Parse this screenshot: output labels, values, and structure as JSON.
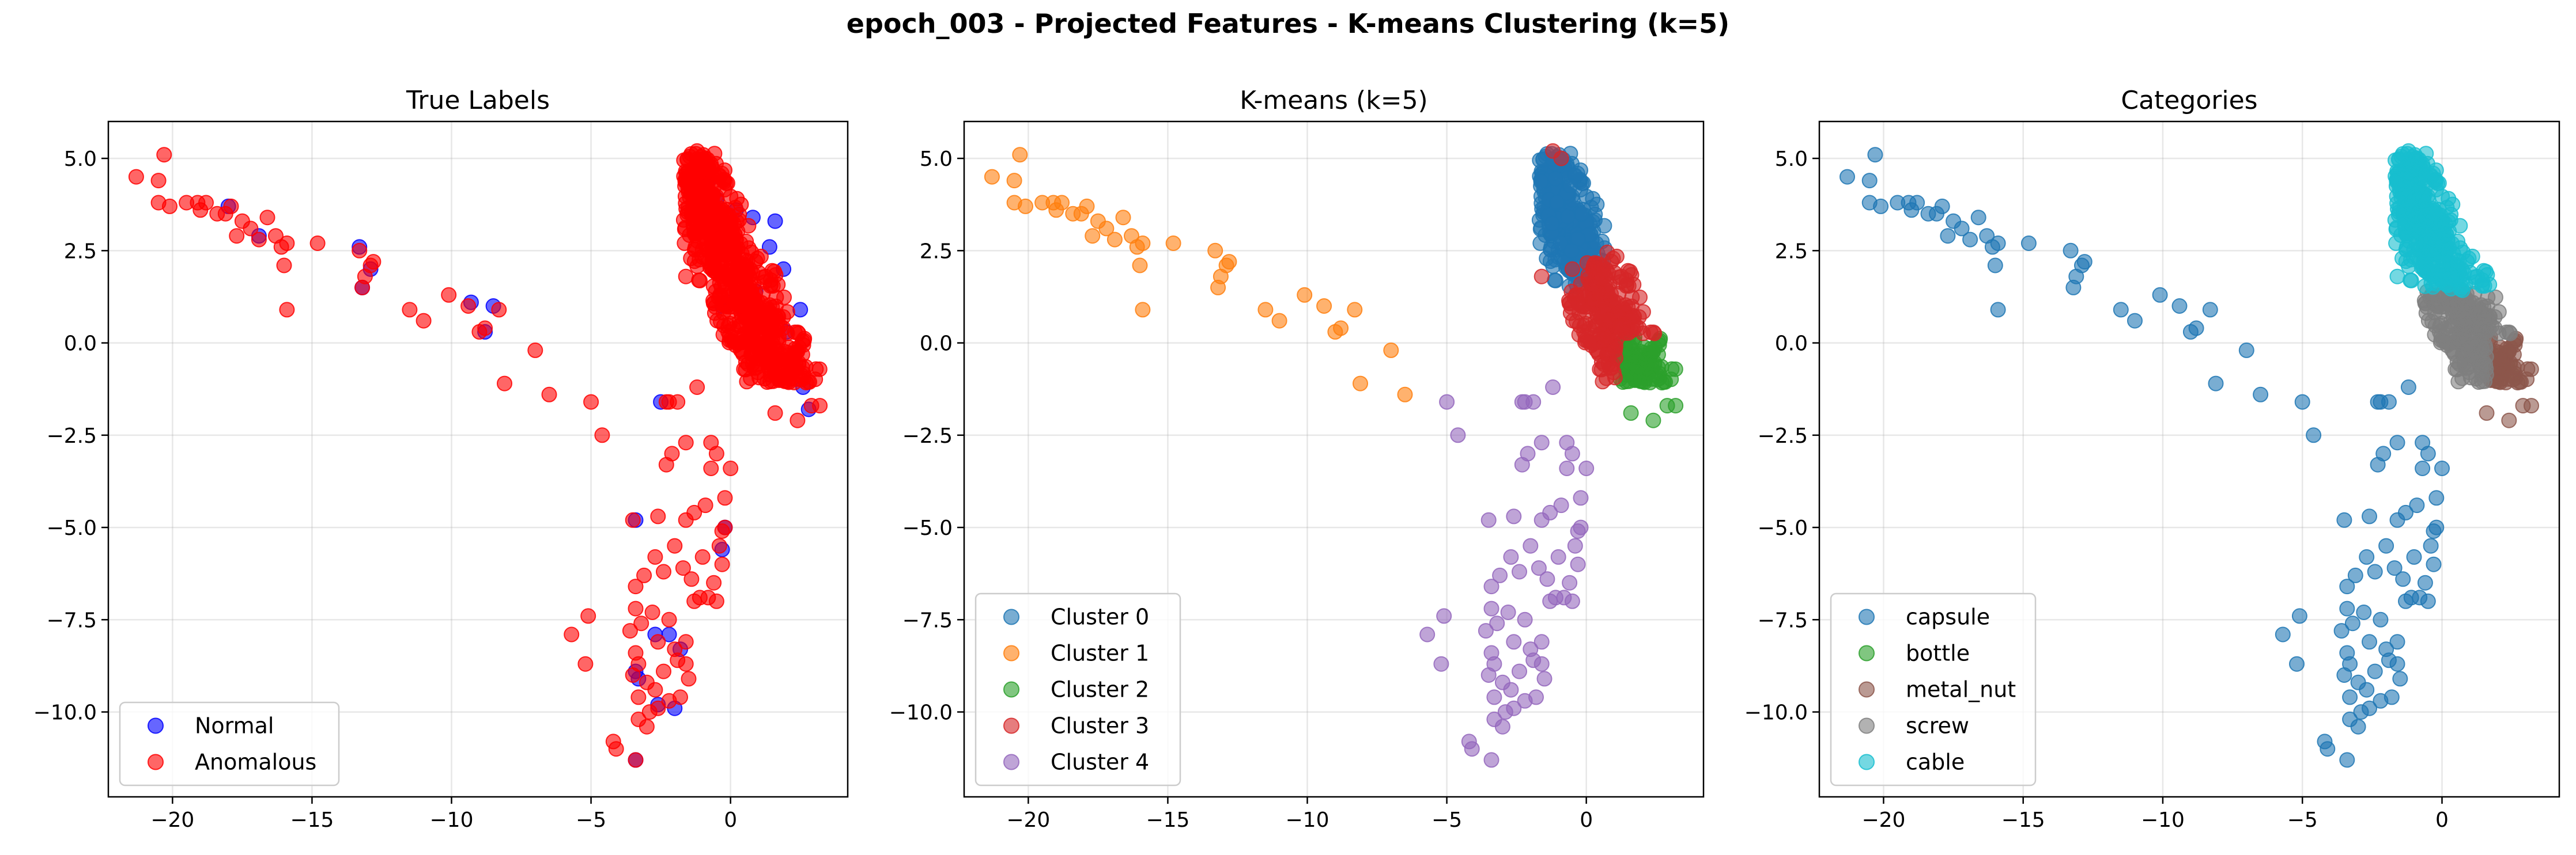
{
  "figure": {
    "title": "epoch_003 - Projected Features - K-means Clustering (k=5)"
  },
  "chart_data": [
    {
      "type": "scatter",
      "title": "True Labels",
      "xlabel": "",
      "ylabel": "",
      "xlim": [
        -22.3,
        4.2
      ],
      "ylim": [
        -12.3,
        6.0
      ],
      "xticks": [
        -20,
        -15,
        -10,
        -5,
        0
      ],
      "yticks": [
        -10.0,
        -7.5,
        -5.0,
        -2.5,
        0.0,
        2.5,
        5.0
      ],
      "xtick_labels": [
        "−20",
        "−15",
        "−10",
        "−5",
        "0"
      ],
      "ytick_labels": [
        "−10.0",
        "−7.5",
        "−5.0",
        "−2.5",
        "0.0",
        "2.5",
        "5.0"
      ],
      "grid": true,
      "legend_position": "lower left",
      "series": [
        {
          "name": "Normal",
          "color": "#0000ff",
          "alpha": 0.6,
          "region": "normal"
        },
        {
          "name": "Anomalous",
          "color": "#ff0000",
          "alpha": 0.6,
          "region": "anomalous"
        }
      ]
    },
    {
      "type": "scatter",
      "title": "K-means (k=5)",
      "xlabel": "",
      "ylabel": "",
      "xlim": [
        -22.3,
        4.2
      ],
      "ylim": [
        -12.3,
        6.0
      ],
      "xticks": [
        -20,
        -15,
        -10,
        -5,
        0
      ],
      "yticks": [
        -10.0,
        -7.5,
        -5.0,
        -2.5,
        0.0,
        2.5,
        5.0
      ],
      "xtick_labels": [
        "−20",
        "−15",
        "−10",
        "−5",
        "0"
      ],
      "ytick_labels": [
        "−10.0",
        "−7.5",
        "−5.0",
        "−2.5",
        "0.0",
        "2.5",
        "5.0"
      ],
      "grid": true,
      "legend_position": "lower left",
      "series": [
        {
          "name": "Cluster 0",
          "color": "#1f77b4",
          "alpha": 0.6,
          "region": "upper"
        },
        {
          "name": "Cluster 1",
          "color": "#ff7f0e",
          "alpha": 0.6,
          "region": "tail"
        },
        {
          "name": "Cluster 2",
          "color": "#2ca02c",
          "alpha": 0.6,
          "region": "lowerright"
        },
        {
          "name": "Cluster 3",
          "color": "#d62728",
          "alpha": 0.6,
          "region": "middle"
        },
        {
          "name": "Cluster 4",
          "color": "#9467bd",
          "alpha": 0.6,
          "region": "lowerarm"
        }
      ]
    },
    {
      "type": "scatter",
      "title": "Categories",
      "xlabel": "",
      "ylabel": "",
      "xlim": [
        -22.3,
        4.2
      ],
      "ylim": [
        -12.3,
        6.0
      ],
      "xticks": [
        -20,
        -15,
        -10,
        -5,
        0
      ],
      "yticks": [
        -10.0,
        -7.5,
        -5.0,
        -2.5,
        0.0,
        2.5,
        5.0
      ],
      "xtick_labels": [
        "−20",
        "−15",
        "−10",
        "−5",
        "0"
      ],
      "ytick_labels": [
        "−10.0",
        "−7.5",
        "−5.0",
        "−2.5",
        "0.0",
        "2.5",
        "5.0"
      ],
      "grid": true,
      "legend_position": "lower left",
      "series": [
        {
          "name": "capsule",
          "color": "#1f77b4",
          "alpha": 0.6,
          "region": "capsule"
        },
        {
          "name": "bottle",
          "color": "#2ca02c",
          "alpha": 0.6,
          "region": "none"
        },
        {
          "name": "metal_nut",
          "color": "#8c564b",
          "alpha": 0.6,
          "region": "metalnut"
        },
        {
          "name": "screw",
          "color": "#7f7f7f",
          "alpha": 0.6,
          "region": "screw"
        },
        {
          "name": "cable",
          "color": "#17becf",
          "alpha": 0.6,
          "region": "cable"
        }
      ]
    }
  ]
}
